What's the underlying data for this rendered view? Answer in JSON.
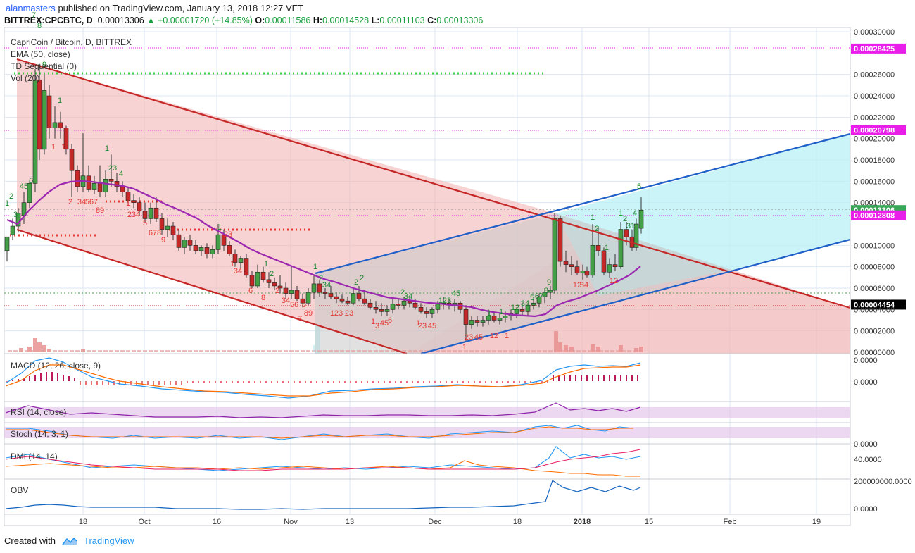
{
  "header": {
    "author": "alanmasters",
    "published_text": "published on TradingView.com, January 13, 2018 12:27 VET",
    "symbol": "BITTREX:CPCBTC, D",
    "last": "0.00013306",
    "change": "+0.00001720 (+14.85%)",
    "o_label": "O:",
    "o_value": "0.00011586",
    "h_label": "H:",
    "h_value": "0.00014528",
    "l_label": "L:",
    "l_value": "0.00011103",
    "c_label": "C:",
    "c_value": "0.00013306"
  },
  "legend": [
    "CapriCoin / Bitcoin, D, BITTREX",
    "EMA (50, close)",
    "TD Sequential (0)",
    "Vol (20)"
  ],
  "indicators": {
    "macd": "MACD (12, 26, close, 9)",
    "rsi": "RSI (14, close)",
    "stoch": "Stoch (14, 3, 1)",
    "dmi": "DMI (14, 14)",
    "obv": "OBV"
  },
  "price_axis": [
    "0.00030000",
    "0.00028425",
    "0.00026000",
    "0.00024000",
    "0.00022000",
    "0.00020798",
    "0.00020000",
    "0.00018000",
    "0.00016000",
    "0.00014000",
    "0.00013306",
    "0.00012808",
    "0.00010000",
    "0.00008000",
    "0.00006000",
    "0.00004454",
    "0.00004000",
    "0.00002000",
    "0.00000000"
  ],
  "price_badges": [
    {
      "label": "0.00028425",
      "color": "#e91ee9"
    },
    {
      "label": "0.00020798",
      "color": "#e91ee9"
    },
    {
      "label": "0.00013306",
      "color": "#3aa757"
    },
    {
      "label": "0.00012808",
      "color": "#e91ee9"
    },
    {
      "label": "0.00004454",
      "color": "#000000"
    }
  ],
  "indicator_axis": {
    "macd": [
      "0.0000",
      "0.0000"
    ],
    "stoch": [
      "0.0000"
    ],
    "dmi": [
      "40.0000"
    ],
    "obv": [
      "200000000.0000",
      "0.0000"
    ]
  },
  "time_axis": [
    "18",
    "Oct",
    "16",
    "Nov",
    "13",
    "Dec",
    "18",
    "2018",
    "15",
    "Feb",
    "19"
  ],
  "footer": {
    "created_with": "Created with",
    "brand": "TradingView"
  },
  "chart_data": {
    "type": "candlestick",
    "title": "CapriCoin / Bitcoin, D, BITTREX",
    "ylim": [
      0,
      0.0003
    ],
    "horizontal_levels": [
      0.00028425,
      0.00020798,
      0.00012808,
      4.454e-05
    ],
    "last_close": 0.00013306
  },
  "colors": {
    "bear": "#c62828",
    "bull": "#43a047",
    "ema": "#9c27b0",
    "channel_red": "#c62828",
    "channel_blue": "#1e5fc8",
    "magenta": "#e91ee9"
  }
}
